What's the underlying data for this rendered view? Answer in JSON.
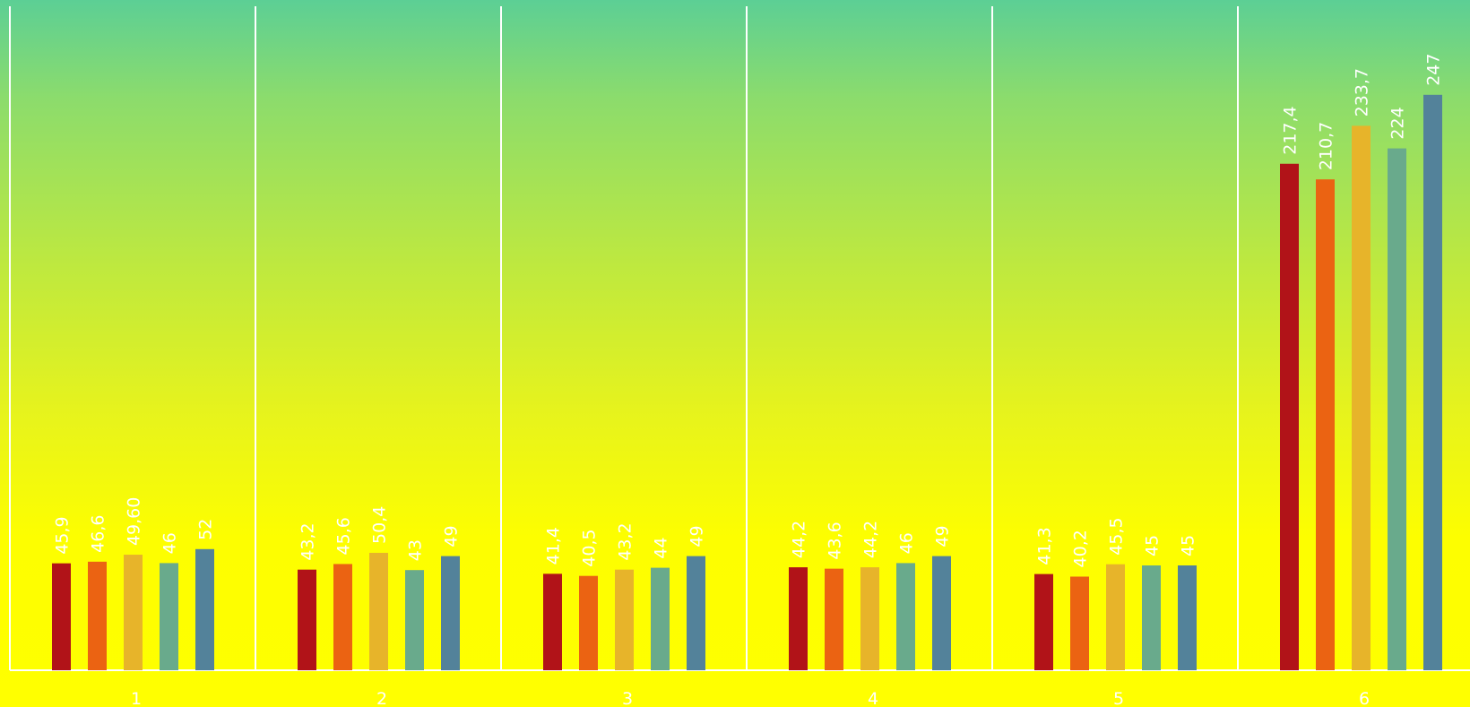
{
  "colors": {
    "background_top": "#5ccf95",
    "background_bottom": "#ffff00",
    "gridline": "#ffffff",
    "labels": "#ffffff"
  },
  "chart_data": {
    "type": "bar",
    "title": "",
    "xlabel": "",
    "ylabel": "",
    "ylim": [
      0,
      285
    ],
    "grid": "vertical separators between categories",
    "legend": "none",
    "categories": [
      "1",
      "2",
      "3",
      "4",
      "5",
      "6"
    ],
    "series": [
      {
        "color": "#b11318",
        "values": [
          45.9,
          43.2,
          41.4,
          44.2,
          41.3,
          217.4
        ],
        "labels": [
          "45,9",
          "43,2",
          "41,4",
          "44,2",
          "41,3",
          "217,4"
        ]
      },
      {
        "color": "#eb6312",
        "values": [
          46.6,
          45.6,
          40.5,
          43.6,
          40.2,
          210.7
        ],
        "labels": [
          "46,6",
          "45,6",
          "40,5",
          "43,6",
          "40,2",
          "210,7"
        ]
      },
      {
        "color": "#e7b42a",
        "values": [
          49.6,
          50.4,
          43.2,
          44.2,
          45.5,
          233.7
        ],
        "labels": [
          "49,60",
          "50,4",
          "43,2",
          "44,2",
          "45,5",
          "233,7"
        ]
      },
      {
        "color": "#69aa8c",
        "values": [
          46,
          43,
          44,
          46,
          45,
          224
        ],
        "labels": [
          "46",
          "43",
          "44",
          "46",
          "45",
          "224"
        ]
      },
      {
        "color": "#53829a",
        "values": [
          52,
          49,
          49,
          49,
          45,
          247
        ],
        "labels": [
          "52",
          "49",
          "49",
          "49",
          "45",
          "247"
        ]
      }
    ]
  }
}
